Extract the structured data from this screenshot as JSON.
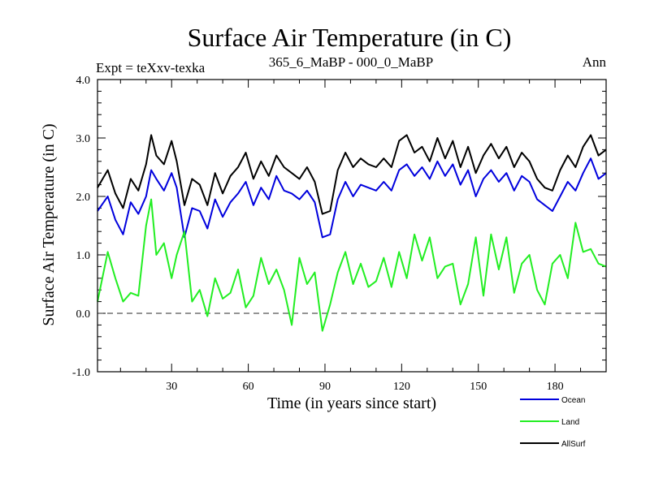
{
  "chart_data": {
    "type": "line",
    "title": "Surface Air Temperature (in C)",
    "subtitle_left": "Expt = teXxv-texka",
    "subtitle_center": "365_6_MaBP - 000_0_MaBP",
    "subtitle_right": "Ann",
    "xlabel": "Time (in years since start)",
    "ylabel": "Surface Air Temperature (in C)",
    "xlim": [
      1,
      200
    ],
    "ylim": [
      -1.0,
      4.0
    ],
    "x_ticks": [
      30,
      60,
      90,
      120,
      150,
      180
    ],
    "x_tick_labels": [
      "30",
      "60",
      "90",
      "120",
      "150",
      "180"
    ],
    "y_ticks": [
      -1.0,
      0.0,
      1.0,
      2.0,
      3.0,
      4.0
    ],
    "y_tick_labels": [
      "-1.0",
      "0.0",
      "1.0",
      "2.0",
      "3.0",
      "4.0"
    ],
    "reference_line": {
      "y": 0.0,
      "style": "dashed",
      "color": "#555555"
    },
    "x": [
      1,
      5,
      8,
      11,
      14,
      17,
      20,
      22,
      24,
      27,
      30,
      32,
      35,
      38,
      41,
      44,
      47,
      50,
      53,
      56,
      59,
      62,
      65,
      68,
      71,
      74,
      77,
      80,
      83,
      86,
      89,
      92,
      95,
      98,
      101,
      104,
      107,
      110,
      113,
      116,
      119,
      122,
      125,
      128,
      131,
      134,
      137,
      140,
      143,
      146,
      149,
      152,
      155,
      158,
      161,
      164,
      167,
      170,
      173,
      176,
      179,
      182,
      185,
      188,
      191,
      194,
      197,
      200
    ],
    "series": [
      {
        "name": "Ocean",
        "color": "#0000dd",
        "values": [
          1.75,
          2.0,
          1.6,
          1.35,
          1.9,
          1.7,
          2.0,
          2.45,
          2.3,
          2.1,
          2.4,
          2.15,
          1.3,
          1.8,
          1.75,
          1.45,
          1.95,
          1.65,
          1.9,
          2.05,
          2.25,
          1.85,
          2.15,
          1.95,
          2.35,
          2.1,
          2.05,
          1.95,
          2.1,
          1.9,
          1.3,
          1.35,
          1.95,
          2.25,
          2.0,
          2.2,
          2.15,
          2.1,
          2.25,
          2.1,
          2.45,
          2.55,
          2.35,
          2.5,
          2.3,
          2.6,
          2.35,
          2.55,
          2.2,
          2.45,
          2.0,
          2.3,
          2.45,
          2.25,
          2.4,
          2.1,
          2.35,
          2.25,
          1.95,
          1.85,
          1.75,
          2.0,
          2.25,
          2.1,
          2.4,
          2.65,
          2.3,
          2.4
        ]
      },
      {
        "name": "Land",
        "color": "#22ee22",
        "values": [
          0.2,
          1.05,
          0.6,
          0.2,
          0.35,
          0.3,
          1.5,
          1.95,
          1.0,
          1.2,
          0.6,
          1.0,
          1.4,
          0.2,
          0.4,
          -0.05,
          0.6,
          0.25,
          0.35,
          0.75,
          0.1,
          0.3,
          0.95,
          0.5,
          0.75,
          0.4,
          -0.2,
          0.95,
          0.5,
          0.7,
          -0.3,
          0.15,
          0.7,
          1.05,
          0.5,
          0.85,
          0.45,
          0.55,
          0.95,
          0.45,
          1.05,
          0.6,
          1.35,
          0.9,
          1.3,
          0.6,
          0.8,
          0.85,
          0.15,
          0.5,
          1.3,
          0.3,
          1.35,
          0.75,
          1.3,
          0.35,
          0.85,
          1.0,
          0.4,
          0.15,
          0.85,
          1.0,
          0.6,
          1.55,
          1.05,
          1.1,
          0.85,
          0.8
        ]
      },
      {
        "name": "AllSurf",
        "color": "#000000",
        "values": [
          2.15,
          2.45,
          2.05,
          1.8,
          2.3,
          2.1,
          2.55,
          3.05,
          2.7,
          2.55,
          2.95,
          2.6,
          1.85,
          2.3,
          2.2,
          1.85,
          2.4,
          2.05,
          2.35,
          2.5,
          2.75,
          2.3,
          2.6,
          2.35,
          2.7,
          2.5,
          2.4,
          2.3,
          2.5,
          2.25,
          1.7,
          1.75,
          2.45,
          2.75,
          2.5,
          2.65,
          2.55,
          2.5,
          2.65,
          2.5,
          2.95,
          3.05,
          2.75,
          2.85,
          2.6,
          3.0,
          2.65,
          2.95,
          2.5,
          2.85,
          2.4,
          2.7,
          2.9,
          2.65,
          2.85,
          2.5,
          2.75,
          2.6,
          2.3,
          2.15,
          2.1,
          2.45,
          2.7,
          2.5,
          2.85,
          3.05,
          2.7,
          2.8
        ]
      }
    ],
    "legend": {
      "placement": "bottom-right"
    }
  }
}
